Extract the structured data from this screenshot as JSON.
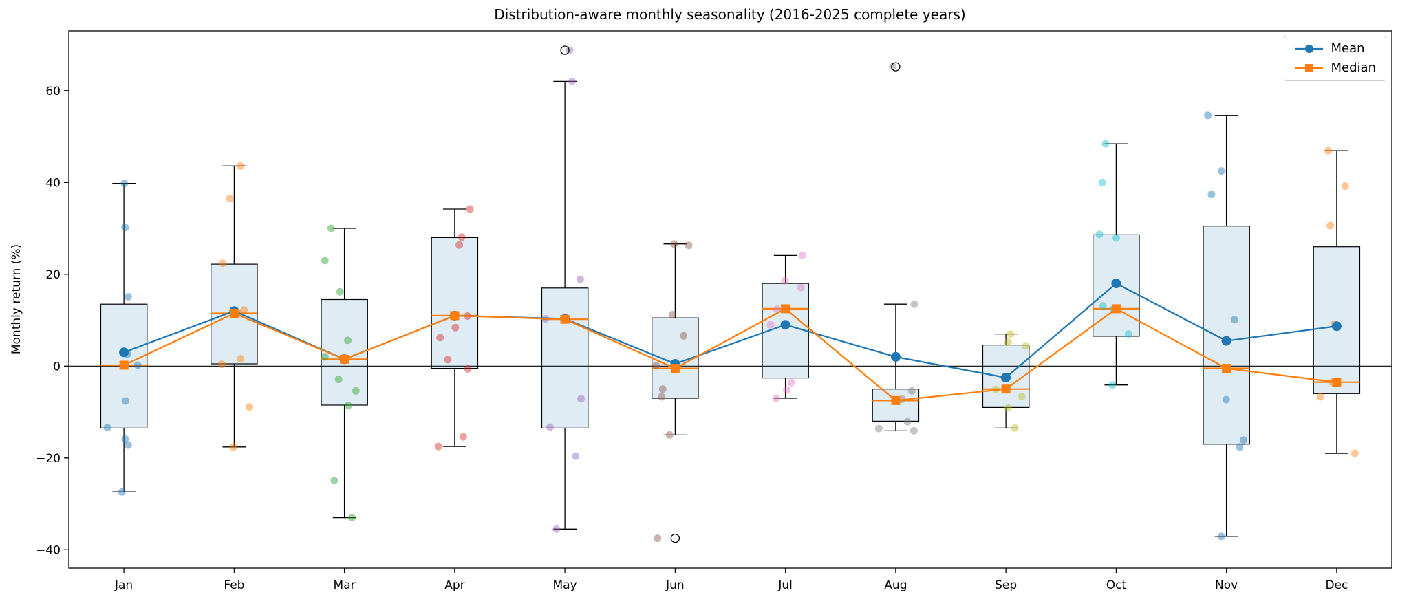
{
  "title": "Distribution-aware monthly seasonality (2016-2025 complete years)",
  "chart_data": {
    "type": "box",
    "title": "Distribution-aware monthly seasonality (2016-2025 complete years)",
    "ylabel": "Monthly return (%)",
    "ylim": [
      -44,
      73
    ],
    "yticks": [
      -40,
      -20,
      0,
      20,
      40,
      60
    ],
    "categories": [
      "Jan",
      "Feb",
      "Mar",
      "Apr",
      "May",
      "Jun",
      "Jul",
      "Aug",
      "Sep",
      "Oct",
      "Nov",
      "Dec"
    ],
    "grid": false,
    "zero_line": 0,
    "box_fill_color": "#1f77b4",
    "box_fill_opacity": 0.14,
    "box_edge_color": "#000000",
    "median_color": "#ff7f0e",
    "legend_position": "top-right",
    "boxes": [
      {
        "month": "Jan",
        "whislo": -27.4,
        "q1": -13.5,
        "med": 0.2,
        "q3": 13.5,
        "whishi": 39.8,
        "fliers": [],
        "point_color": "#1f77b4",
        "points": [
          39.8,
          30.2,
          15.1,
          2.6,
          0.2,
          -7.6,
          -13.4,
          -15.9,
          -17.2,
          -27.4
        ]
      },
      {
        "month": "Feb",
        "whislo": -17.6,
        "q1": 0.5,
        "med": 11.5,
        "q3": 22.2,
        "whishi": 43.6,
        "fliers": [],
        "point_color": "#ff7f0e",
        "points": [
          43.6,
          36.5,
          22.4,
          12.2,
          11.5,
          1.6,
          0.4,
          -8.9,
          -17.6
        ]
      },
      {
        "month": "Mar",
        "whislo": -33.0,
        "q1": -8.5,
        "med": 1.5,
        "q3": 14.5,
        "whishi": 30.0,
        "fliers": [],
        "point_color": "#2ca02c",
        "points": [
          30.0,
          23.0,
          16.2,
          5.6,
          2.0,
          -2.9,
          -5.4,
          -8.6,
          -24.9,
          -33.0
        ]
      },
      {
        "month": "Apr",
        "whislo": -17.5,
        "q1": -0.5,
        "med": 11.0,
        "q3": 28.0,
        "whishi": 34.2,
        "fliers": [],
        "point_color": "#d62728",
        "points": [
          34.2,
          28.1,
          26.4,
          10.9,
          8.4,
          6.2,
          1.4,
          -0.6,
          -15.4,
          -17.5
        ]
      },
      {
        "month": "May",
        "whislo": -35.5,
        "q1": -13.5,
        "med": 10.2,
        "q3": 17.0,
        "whishi": 62.0,
        "fliers": [
          68.8
        ],
        "point_color": "#9467bd",
        "points": [
          68.8,
          62.0,
          18.9,
          10.3,
          -7.1,
          -13.3,
          -19.6,
          -35.5
        ]
      },
      {
        "month": "Jun",
        "whislo": -15.0,
        "q1": -7.0,
        "med": -0.5,
        "q3": 10.5,
        "whishi": 26.6,
        "fliers": [
          -37.5
        ],
        "point_color": "#8c564b",
        "points": [
          26.6,
          26.3,
          11.2,
          6.6,
          0.1,
          -5.0,
          -6.7,
          -15.0,
          -37.5
        ]
      },
      {
        "month": "Jul",
        "whislo": -7.0,
        "q1": -2.6,
        "med": 12.5,
        "q3": 18.0,
        "whishi": 24.1,
        "fliers": [],
        "point_color": "#e377c2",
        "points": [
          24.1,
          18.6,
          17.1,
          12.4,
          9.0,
          -3.6,
          -5.2,
          -7.0
        ]
      },
      {
        "month": "Aug",
        "whislo": -14.1,
        "q1": -12.0,
        "med": -7.5,
        "q3": -5.0,
        "whishi": 13.5,
        "fliers": [
          65.2
        ],
        "point_color": "#7f7f7f",
        "points": [
          65.2,
          13.5,
          2.1,
          -5.4,
          -7.2,
          -12.1,
          -13.6,
          -14.1
        ]
      },
      {
        "month": "Sep",
        "whislo": -13.5,
        "q1": -9.0,
        "med": -5.0,
        "q3": 4.6,
        "whishi": 7.0,
        "fliers": [],
        "point_color": "#bcbd22",
        "points": [
          7.0,
          5.2,
          4.4,
          -2.4,
          -5.1,
          -6.6,
          -9.1,
          -13.5
        ]
      },
      {
        "month": "Oct",
        "whislo": -4.1,
        "q1": 6.5,
        "med": 12.5,
        "q3": 28.6,
        "whishi": 48.4,
        "fliers": [],
        "point_color": "#17becf",
        "points": [
          48.4,
          40.0,
          28.7,
          27.9,
          13.1,
          12.4,
          7.0,
          -4.1
        ]
      },
      {
        "month": "Nov",
        "whislo": -37.1,
        "q1": -17.0,
        "med": -0.5,
        "q3": 30.5,
        "whishi": 54.6,
        "fliers": [],
        "point_color": "#1f77b4",
        "points": [
          54.6,
          42.5,
          37.4,
          10.1,
          -7.3,
          -16.1,
          -17.6,
          -37.1
        ]
      },
      {
        "month": "Dec",
        "whislo": -19.0,
        "q1": -6.0,
        "med": -3.5,
        "q3": 26.0,
        "whishi": 46.9,
        "fliers": [],
        "point_color": "#ff7f0e",
        "points": [
          46.9,
          39.2,
          30.6,
          9.1,
          -3.5,
          -6.7,
          -19.0
        ]
      }
    ],
    "series": [
      {
        "name": "Mean",
        "marker": "circle",
        "color": "#1f77b4",
        "values": [
          3.0,
          12.0,
          1.5,
          11.0,
          10.3,
          0.5,
          9.0,
          2.0,
          -2.5,
          18.0,
          5.5,
          8.7
        ]
      },
      {
        "name": "Median",
        "marker": "square",
        "color": "#ff7f0e",
        "values": [
          0.2,
          11.5,
          1.5,
          11.0,
          10.2,
          -0.5,
          12.5,
          -7.5,
          -5.0,
          12.5,
          -0.5,
          -3.5
        ]
      }
    ]
  }
}
